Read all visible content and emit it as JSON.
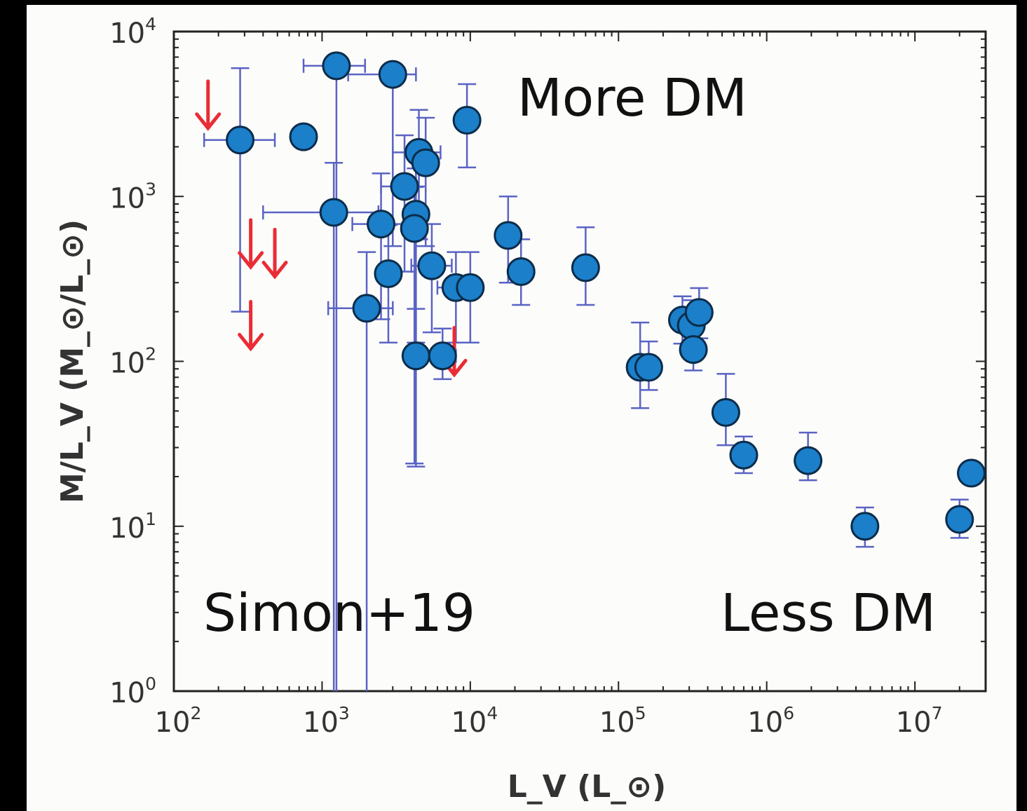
{
  "chart_data": {
    "type": "scatter",
    "title": "",
    "xlabel": "L_V (L_⊙)",
    "ylabel": "M/L_V (M_⊙/L_⊙)",
    "x_scale": "log",
    "y_scale": "log",
    "xlim": [
      100,
      30000000
    ],
    "ylim": [
      1,
      10000
    ],
    "x_ticks": [
      {
        "value": 100,
        "base": "10",
        "exp": "2"
      },
      {
        "value": 1000,
        "base": "10",
        "exp": "3"
      },
      {
        "value": 10000,
        "base": "10",
        "exp": "4"
      },
      {
        "value": 100000,
        "base": "10",
        "exp": "5"
      },
      {
        "value": 1000000,
        "base": "10",
        "exp": "6"
      },
      {
        "value": 10000000,
        "base": "10",
        "exp": "7"
      }
    ],
    "y_ticks": [
      {
        "value": 1,
        "base": "10",
        "exp": "0"
      },
      {
        "value": 10,
        "base": "10",
        "exp": "1"
      },
      {
        "value": 100,
        "base": "10",
        "exp": "2"
      },
      {
        "value": 1000,
        "base": "10",
        "exp": "3"
      },
      {
        "value": 10000,
        "base": "10",
        "exp": "4"
      }
    ],
    "grid": false,
    "colors": {
      "point_fill": "#1b7fc9",
      "point_edge": "#0b2c4a",
      "error_bar": "#5a63c4",
      "upper_limit": "#ea2c35"
    },
    "points": [
      {
        "x": 280,
        "y": 2200,
        "xerr": [
          120,
          200
        ],
        "yerr": [
          2000,
          3800
        ]
      },
      {
        "x": 750,
        "y": 2300
      },
      {
        "x": 1250,
        "y": 6200,
        "xerr": [
          500,
          700
        ],
        "yerr": [
          6199,
          0
        ]
      },
      {
        "x": 3000,
        "y": 5500,
        "xerr": [
          1500,
          1300
        ],
        "yerr": [
          5000,
          0
        ]
      },
      {
        "x": 9500,
        "y": 2900,
        "yerr": [
          1400,
          1900
        ]
      },
      {
        "x": 4500,
        "y": 1850,
        "xerr": [
          1500,
          1800
        ],
        "yerr": [
          1300,
          1500
        ]
      },
      {
        "x": 5000,
        "y": 1600,
        "yerr": [
          1100,
          1400
        ]
      },
      {
        "x": 3600,
        "y": 1150,
        "xerr": [
          1100,
          1400
        ],
        "yerr": [
          800,
          1200
        ]
      },
      {
        "x": 1200,
        "y": 800,
        "xerr": [
          800,
          1200
        ],
        "yerr": [
          800,
          800
        ]
      },
      {
        "x": 2500,
        "y": 680,
        "xerr": [
          900,
          1200
        ],
        "yerr": [
          500,
          700
        ]
      },
      {
        "x": 4300,
        "y": 780,
        "yerr": [
          650,
          700
        ]
      },
      {
        "x": 4200,
        "y": 640,
        "yerr": [
          616,
          500
        ]
      },
      {
        "x": 2800,
        "y": 340,
        "yerr": [
          210,
          330
        ]
      },
      {
        "x": 5500,
        "y": 380,
        "xerr": [
          1500,
          2000
        ],
        "yerr": [
          230,
          300
        ]
      },
      {
        "x": 2000,
        "y": 210,
        "xerr": [
          900,
          1000
        ],
        "yerr": [
          209,
          250
        ]
      },
      {
        "x": 4300,
        "y": 108,
        "yerr": [
          85,
          100
        ]
      },
      {
        "x": 6500,
        "y": 108,
        "xerr": [
          1500,
          1500
        ],
        "yerr": [
          30,
          50
        ]
      },
      {
        "x": 8000,
        "y": 280,
        "xerr": [
          2000,
          1000
        ],
        "yerr": [
          150,
          180
        ]
      },
      {
        "x": 10000,
        "y": 280,
        "xerr": [
          1500,
          1500
        ],
        "yerr": [
          150,
          180
        ]
      },
      {
        "x": 18000,
        "y": 580,
        "yerr": [
          280,
          420
        ]
      },
      {
        "x": 22000,
        "y": 350,
        "yerr": [
          130,
          200
        ]
      },
      {
        "x": 60000,
        "y": 370,
        "yerr": [
          150,
          280
        ]
      },
      {
        "x": 140000,
        "y": 92,
        "yerr": [
          40,
          80
        ]
      },
      {
        "x": 160000,
        "y": 92,
        "yerr": [
          25,
          40
        ]
      },
      {
        "x": 270000,
        "y": 178,
        "yerr": [
          50,
          70
        ]
      },
      {
        "x": 310000,
        "y": 165,
        "yerr": [
          50,
          70
        ]
      },
      {
        "x": 350000,
        "y": 198,
        "yerr": [
          60,
          80
        ]
      },
      {
        "x": 320000,
        "y": 118,
        "yerr": [
          30,
          40
        ]
      },
      {
        "x": 530000,
        "y": 49,
        "yerr": [
          18,
          35
        ]
      },
      {
        "x": 700000,
        "y": 27,
        "yerr": [
          6,
          8
        ]
      },
      {
        "x": 1900000,
        "y": 25,
        "yerr": [
          6,
          12
        ]
      },
      {
        "x": 4600000,
        "y": 10,
        "yerr": [
          2.5,
          3
        ]
      },
      {
        "x": 20000000,
        "y": 11,
        "yerr": [
          2.5,
          3.5
        ]
      },
      {
        "x": 24000000,
        "y": 21
      }
    ],
    "upper_limits": [
      {
        "x": 170,
        "y": 5000
      },
      {
        "x": 330,
        "y": 720
      },
      {
        "x": 480,
        "y": 630
      },
      {
        "x": 330,
        "y": 230
      },
      {
        "x": 7800,
        "y": 160
      }
    ]
  },
  "annotations": {
    "more_dm": "More DM",
    "simon": "Simon+19",
    "less_dm": "Less DM"
  }
}
